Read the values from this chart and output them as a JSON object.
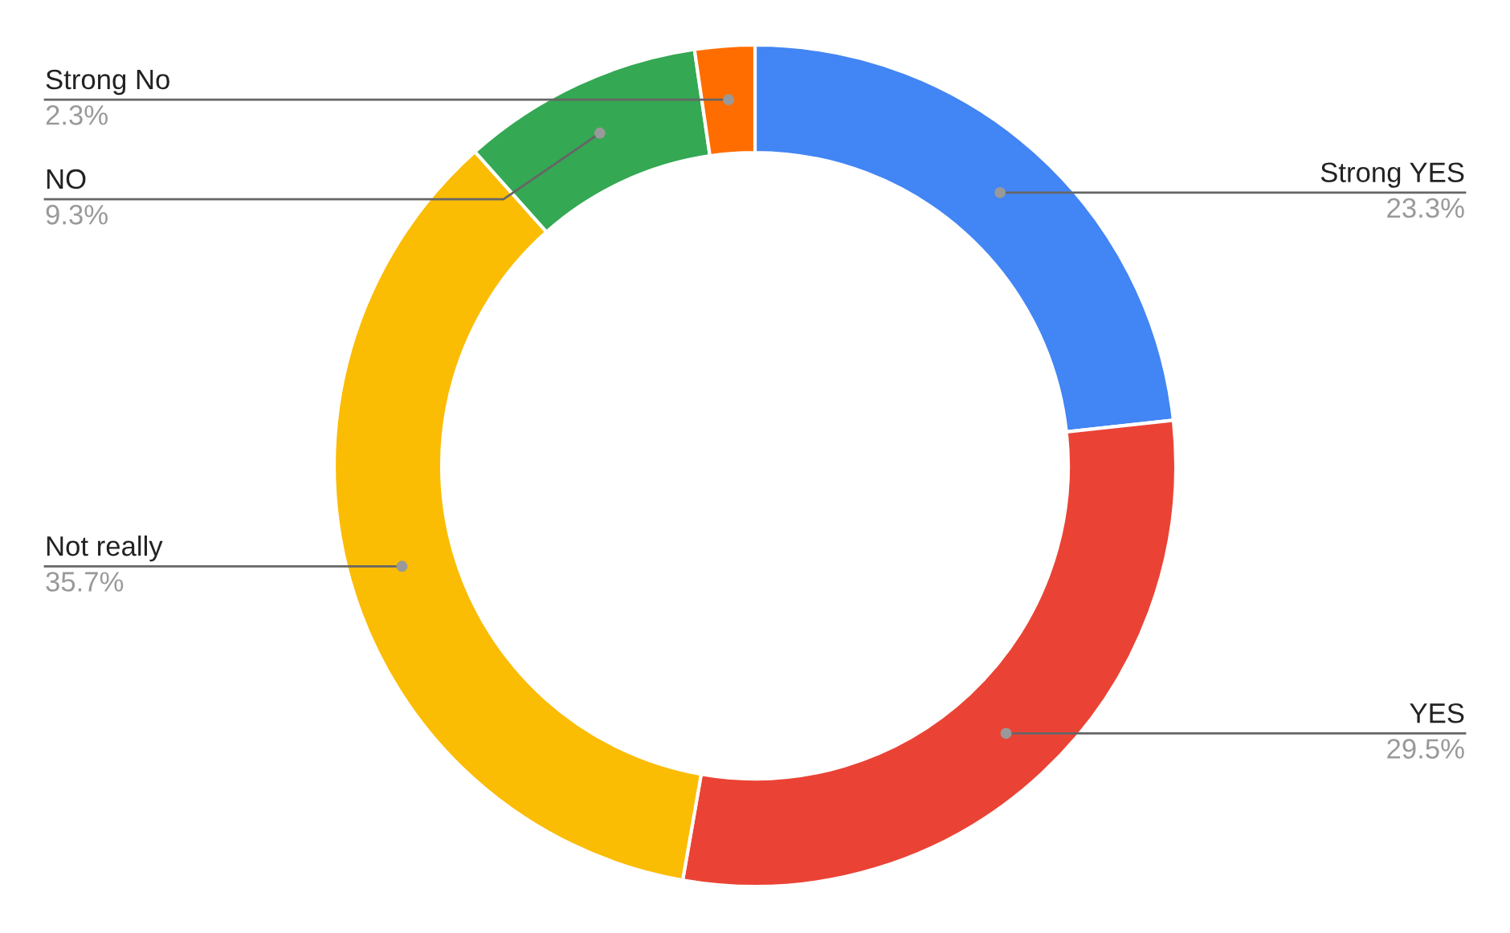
{
  "chart_data": {
    "type": "donut",
    "categories": [
      "Strong YES",
      "YES",
      "Not really",
      "NO",
      "Strong No"
    ],
    "values": [
      23.3,
      29.5,
      35.7,
      9.3,
      2.3
    ],
    "value_labels": [
      "23.3%",
      "29.5%",
      "35.7%",
      "9.3%",
      "2.3%"
    ],
    "colors": [
      "#4285f4",
      "#ea4335",
      "#fbbc04",
      "#34a853",
      "#ff6d01"
    ]
  }
}
